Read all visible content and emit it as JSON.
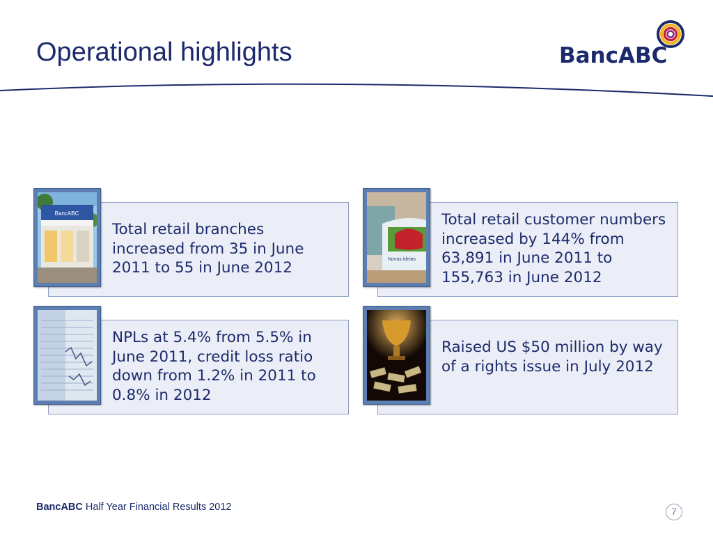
{
  "slide": {
    "title": "Operational highlights",
    "logo_text": "BancABC"
  },
  "highlights": [
    {
      "text": "Total retail branches increased from 35 in June 2011 to 55 in June 2012",
      "image": "branch-photo",
      "image_sign": "BancABC"
    },
    {
      "text": "Total retail customer numbers increased by 144% from 63,891 in June 2011 to 155,763 in June 2012",
      "image": "customer-banner-photo",
      "image_sign": "Novas ideias"
    },
    {
      "text": "NPLs at 5.4% from 5.5% in June 2011, credit loss ratio down from 1.2% in 2011 to 0.8% in 2012",
      "image": "financial-report-photo"
    },
    {
      "text": "Raised US $50 million by way of a rights issue in July 2012",
      "image": "trophy-money-photo"
    }
  ],
  "footer": {
    "brand": "BancABC",
    "text": "Half Year Financial Results 2012",
    "page_number": "7"
  },
  "colors": {
    "brand_navy": "#1c2a6b",
    "card_fill": "#ebeef6",
    "card_border": "#8c9cc2",
    "thumb_frame": "#5c7eb0"
  }
}
